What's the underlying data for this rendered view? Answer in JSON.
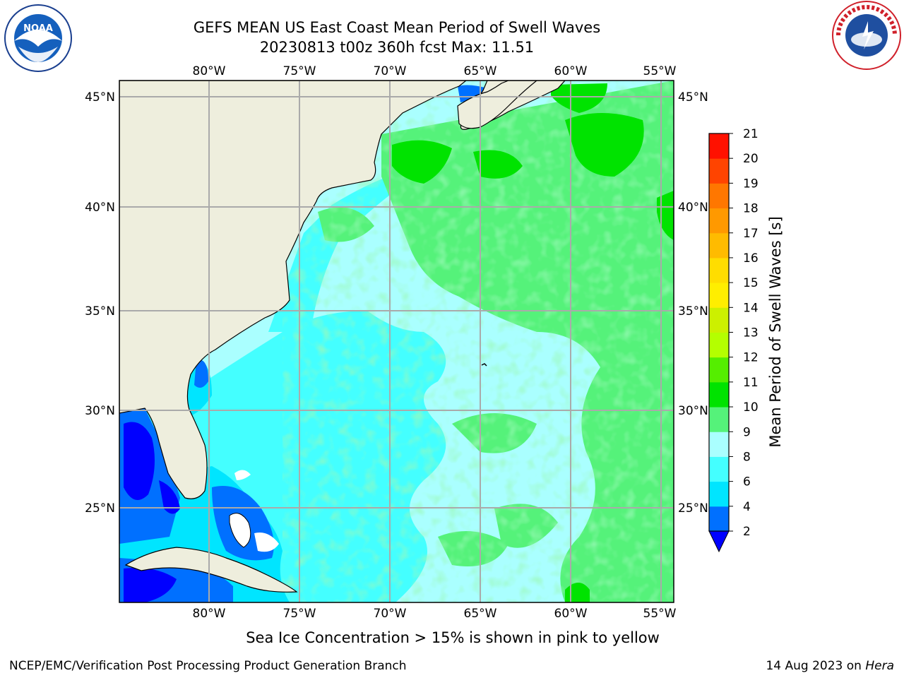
{
  "header": {
    "title": "GEFS MEAN US East Coast Mean Period of Swell Waves",
    "subtitle": "20230813 t00z 360h fcst   Max: 11.51"
  },
  "logos": {
    "left": {
      "icon": "noaa-logo",
      "text": "NOAA"
    },
    "right": {
      "icon": "national-weather-service-logo",
      "text": "NATIONAL WEATHER SERVICE"
    }
  },
  "map": {
    "lon_labels": [
      "80°W",
      "75°W",
      "70°W",
      "65°W",
      "60°W",
      "55°W"
    ],
    "lat_labels": [
      "45°N",
      "40°N",
      "35°N",
      "30°N",
      "25°N"
    ],
    "extent": {
      "lon_min": -85,
      "lon_max": -54.4,
      "lat_min": 20.3,
      "lat_max": 45.8
    },
    "land_color": "#eeeedd",
    "gridline_color": "#aaaaaa"
  },
  "colorbar": {
    "label": "Mean Period of Swell Waves [s]",
    "ticks": [
      "2",
      "4",
      "6",
      "8",
      "9",
      "10",
      "11",
      "12",
      "13",
      "14",
      "15",
      "16",
      "17",
      "18",
      "19",
      "20",
      "21"
    ],
    "extend_min_color": "#0000ff",
    "colors": [
      "#0070ff",
      "#00e5ff",
      "#44ffff",
      "#aaffff",
      "#55f27a",
      "#00e300",
      "#55ee00",
      "#b4ff00",
      "#ccf000",
      "#ffee00",
      "#ffdd00",
      "#ffbb00",
      "#ff9900",
      "#ff7700",
      "#ff4400",
      "#ff1100"
    ]
  },
  "note": "Sea Ice Concentration > 15% is shown in pink to yellow",
  "footer": {
    "left": "NCEP/EMC/Verification Post Processing Product Generation Branch",
    "right_date": "14 Aug 2023 on",
    "right_host": "Hera"
  }
}
